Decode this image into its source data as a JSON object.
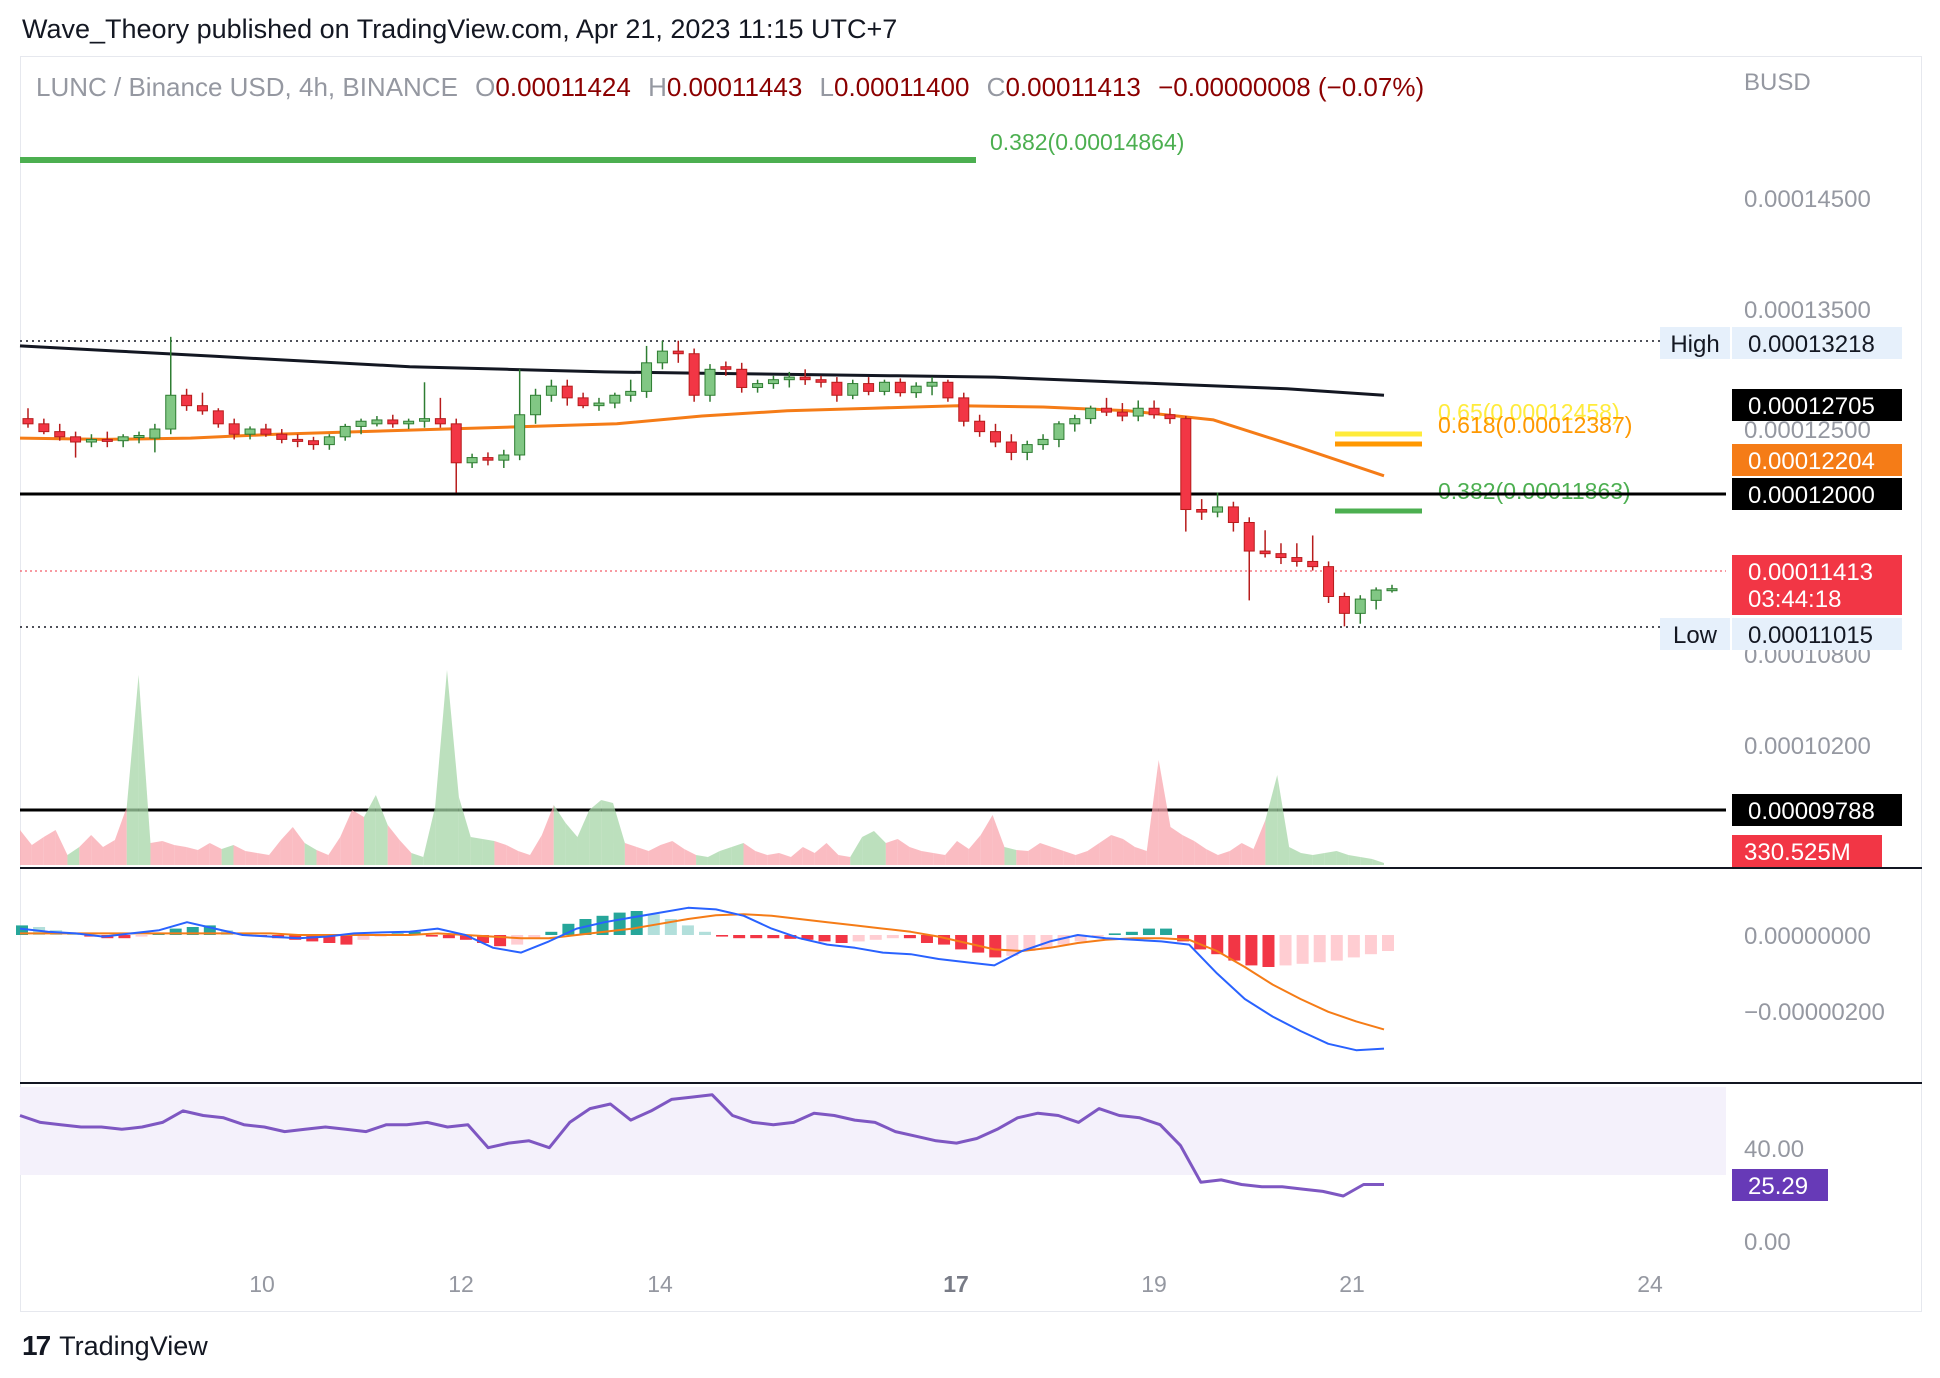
{
  "publisher": "Wave_Theory published on TradingView.com, Apr 21, 2023 11:15 UTC+7",
  "symbol": {
    "title": "LUNC / Binance USD, 4h, BINANCE",
    "o_label": "O",
    "o": "0.00011424",
    "h_label": "H",
    "h": "0.00011443",
    "l_label": "L",
    "l": "0.00011400",
    "c_label": "C",
    "c": "0.00011413",
    "change": "−0.00000008 (−0.07%)"
  },
  "footer": {
    "brand": "TradingView",
    "logo_icon": "tradingview-logo-icon"
  },
  "chart_data": [
    {
      "type": "candlestick",
      "title": "LUNC / Binance USD, 4h, BINANCE",
      "currency_label": "BUSD",
      "y_ticks": [
        "0.00014500",
        "0.00013500",
        "0.00012500",
        "0.00010800",
        "0.00010200"
      ],
      "x_ticks": [
        {
          "label": "10",
          "bold": false
        },
        {
          "label": "12",
          "bold": false
        },
        {
          "label": "14",
          "bold": false
        },
        {
          "label": "17",
          "bold": true
        },
        {
          "label": "19",
          "bold": false
        },
        {
          "label": "21",
          "bold": false
        },
        {
          "label": "24",
          "bold": false
        }
      ],
      "candles_ohlc": [
        [
          0.0001262,
          0.000127,
          0.0001255,
          0.0001258
        ],
        [
          0.0001258,
          0.0001262,
          0.000125,
          0.0001252
        ],
        [
          0.0001252,
          0.0001258,
          0.0001245,
          0.0001248
        ],
        [
          0.0001248,
          0.0001252,
          0.0001232,
          0.0001244
        ],
        [
          0.0001244,
          0.000125,
          0.000124,
          0.0001246
        ],
        [
          0.0001246,
          0.0001252,
          0.000124,
          0.0001245
        ],
        [
          0.0001245,
          0.000125,
          0.000124,
          0.0001248
        ],
        [
          0.0001248,
          0.0001252,
          0.0001243,
          0.0001249
        ],
        [
          0.0001247,
          0.0001258,
          0.0001236,
          0.0001254
        ],
        [
          0.0001254,
          0.0001325,
          0.000125,
          0.000128
        ],
        [
          0.000128,
          0.0001285,
          0.0001268,
          0.0001272
        ],
        [
          0.0001272,
          0.0001282,
          0.0001265,
          0.0001268
        ],
        [
          0.0001268,
          0.000127,
          0.0001255,
          0.0001258
        ],
        [
          0.0001258,
          0.0001262,
          0.0001246,
          0.000125
        ],
        [
          0.000125,
          0.0001256,
          0.0001246,
          0.0001254
        ],
        [
          0.0001254,
          0.0001258,
          0.0001248,
          0.000125
        ],
        [
          0.000125,
          0.0001254,
          0.0001243,
          0.0001246
        ],
        [
          0.0001246,
          0.000125,
          0.000124,
          0.0001245
        ],
        [
          0.0001245,
          0.0001248,
          0.0001238,
          0.0001242
        ],
        [
          0.0001242,
          0.000125,
          0.0001238,
          0.0001248
        ],
        [
          0.0001248,
          0.0001258,
          0.0001245,
          0.0001256
        ],
        [
          0.0001256,
          0.0001262,
          0.000125,
          0.000126
        ],
        [
          0.0001258,
          0.0001264,
          0.0001256,
          0.0001261
        ],
        [
          0.0001261,
          0.0001265,
          0.0001255,
          0.0001258
        ],
        [
          0.0001258,
          0.0001262,
          0.0001254,
          0.000126
        ],
        [
          0.000126,
          0.000129,
          0.0001255,
          0.0001262
        ],
        [
          0.0001262,
          0.0001278,
          0.0001255,
          0.0001258
        ],
        [
          0.0001258,
          0.0001262,
          0.0001205,
          0.0001228
        ],
        [
          0.0001228,
          0.0001235,
          0.0001224,
          0.0001232
        ],
        [
          0.0001232,
          0.0001236,
          0.0001226,
          0.000123
        ],
        [
          0.000123,
          0.0001238,
          0.0001224,
          0.0001234
        ],
        [
          0.0001234,
          0.00013,
          0.000123,
          0.0001265
        ],
        [
          0.0001265,
          0.0001285,
          0.0001258,
          0.000128
        ],
        [
          0.000128,
          0.0001292,
          0.0001275,
          0.0001287
        ],
        [
          0.0001287,
          0.0001292,
          0.0001272,
          0.0001278
        ],
        [
          0.0001278,
          0.0001282,
          0.000127,
          0.0001272
        ],
        [
          0.0001272,
          0.0001278,
          0.0001268,
          0.0001274
        ],
        [
          0.0001274,
          0.0001282,
          0.000127,
          0.000128
        ],
        [
          0.000128,
          0.0001292,
          0.0001275,
          0.0001283
        ],
        [
          0.0001283,
          0.0001318,
          0.0001278,
          0.0001305
        ],
        [
          0.0001305,
          0.0001322,
          0.00013,
          0.0001314
        ],
        [
          0.0001314,
          0.0001322,
          0.0001305,
          0.0001312
        ],
        [
          0.0001312,
          0.0001316,
          0.0001275,
          0.000128
        ],
        [
          0.000128,
          0.0001304,
          0.0001275,
          0.00013
        ],
        [
          0.0001302,
          0.0001306,
          0.0001295,
          0.00013
        ],
        [
          0.00013,
          0.0001305,
          0.0001282,
          0.0001286
        ],
        [
          0.0001286,
          0.0001292,
          0.0001282,
          0.0001289
        ],
        [
          0.0001289,
          0.0001295,
          0.0001285,
          0.0001292
        ],
        [
          0.0001292,
          0.0001298,
          0.0001286,
          0.0001294
        ],
        [
          0.0001294,
          0.00013,
          0.0001288,
          0.0001292
        ],
        [
          0.0001292,
          0.0001295,
          0.0001286,
          0.000129
        ],
        [
          0.000129,
          0.0001294,
          0.0001275,
          0.000128
        ],
        [
          0.000128,
          0.0001292,
          0.0001277,
          0.0001289
        ],
        [
          0.0001289,
          0.0001294,
          0.000128,
          0.0001283
        ],
        [
          0.0001283,
          0.0001292,
          0.000128,
          0.000129
        ],
        [
          0.000129,
          0.0001293,
          0.0001279,
          0.0001282
        ],
        [
          0.0001282,
          0.000129,
          0.0001278,
          0.0001287
        ],
        [
          0.0001287,
          0.0001294,
          0.000128,
          0.000129
        ],
        [
          0.000129,
          0.0001292,
          0.0001275,
          0.0001278
        ],
        [
          0.0001278,
          0.0001282,
          0.0001256,
          0.000126
        ],
        [
          0.000126,
          0.0001265,
          0.0001248,
          0.0001252
        ],
        [
          0.0001252,
          0.0001258,
          0.000124,
          0.0001244
        ],
        [
          0.0001244,
          0.000125,
          0.000123,
          0.0001236
        ],
        [
          0.0001236,
          0.0001245,
          0.000123,
          0.0001242
        ],
        [
          0.0001242,
          0.000125,
          0.0001238,
          0.0001246
        ],
        [
          0.0001246,
          0.000126,
          0.000124,
          0.0001258
        ],
        [
          0.0001258,
          0.0001265,
          0.0001252,
          0.0001262
        ],
        [
          0.0001262,
          0.0001272,
          0.0001258,
          0.000127
        ],
        [
          0.000127,
          0.0001278,
          0.0001264,
          0.0001267
        ],
        [
          0.0001267,
          0.0001274,
          0.000126,
          0.0001264
        ],
        [
          0.0001264,
          0.0001276,
          0.000126,
          0.000127
        ],
        [
          0.000127,
          0.0001276,
          0.0001262,
          0.0001265
        ],
        [
          0.0001265,
          0.000127,
          0.0001258,
          0.0001262
        ],
        [
          0.0001262,
          0.0001264,
          0.0001175,
          0.0001192
        ],
        [
          0.0001192,
          0.00012,
          0.0001184,
          0.000119
        ],
        [
          0.000119,
          0.0001205,
          0.0001186,
          0.0001194
        ],
        [
          0.0001194,
          0.0001198,
          0.0001175,
          0.0001182
        ],
        [
          0.0001182,
          0.0001186,
          0.0001122,
          0.000116
        ],
        [
          0.000116,
          0.0001176,
          0.0001155,
          0.0001158
        ],
        [
          0.0001158,
          0.0001166,
          0.000115,
          0.0001155
        ],
        [
          0.0001155,
          0.0001166,
          0.0001148,
          0.0001152
        ],
        [
          0.0001152,
          0.0001172,
          0.0001145,
          0.0001148
        ],
        [
          0.0001148,
          0.0001152,
          0.000112,
          0.0001125
        ],
        [
          0.0001125,
          0.0001128,
          0.0001102,
          0.0001112
        ],
        [
          0.0001112,
          0.0001126,
          0.0001104,
          0.0001123
        ],
        [
          0.0001122,
          0.0001132,
          0.0001115,
          0.000113
        ],
        [
          0.000113,
          0.0001134,
          0.0001128,
          0.0001131
        ]
      ],
      "ma_black": [
        0.0001318,
        0.0001314,
        0.000131,
        0.0001306,
        0.0001302,
        0.00013,
        0.0001298,
        0.0001297,
        0.0001296,
        0.0001295,
        0.0001294,
        0.0001291,
        0.0001288,
        0.0001285,
        0.000128
      ],
      "ma_orange": [
        0.0001247,
        0.0001246,
        0.0001247,
        0.000125,
        0.0001252,
        0.0001254,
        0.0001256,
        0.0001258,
        0.0001264,
        0.0001268,
        0.000127,
        0.0001272,
        0.0001271,
        0.0001268,
        0.0001261,
        0.000124,
        0.0001218
      ],
      "high_label": "High",
      "high_value": "0.00013218",
      "low_label": "Low",
      "low_value": "0.00011015",
      "price_tags": [
        {
          "value": "0.00012705",
          "bg": "#000000",
          "fg": "#ffffff"
        },
        {
          "value": "0.00012204",
          "bg": "#f57c17",
          "fg": "#ffffff"
        },
        {
          "value": "0.00012000",
          "bg": "#000000",
          "fg": "#ffffff"
        },
        {
          "value": "0.00011413",
          "countdown": "03:44:18",
          "bg": "#f23645",
          "fg": "#ffffff"
        }
      ],
      "support_level": {
        "value": "0.00012000",
        "color": "#000000"
      },
      "fib_levels": [
        {
          "label": "0.382(0.00014864)",
          "color": "#4caf50"
        },
        {
          "label": "0.65(0.00012458)",
          "color": "#ffeb3b"
        },
        {
          "label": "0.618(0.00012387)",
          "color": "#ff9800"
        },
        {
          "label": "0.382(0.00011863)",
          "color": "#4caf50"
        }
      ]
    },
    {
      "type": "area",
      "name": "Volume",
      "level_tag": {
        "value": "0.00009788",
        "bg": "#000000",
        "fg": "#ffffff"
      },
      "last_tag": {
        "value": "330.525M",
        "bg": "#f23645",
        "fg": "#ffffff"
      },
      "values": [
        35,
        20,
        28,
        35,
        10,
        18,
        30,
        18,
        25,
        58,
        190,
        22,
        24,
        20,
        18,
        15,
        22,
        16,
        20,
        14,
        12,
        10,
        25,
        38,
        22,
        15,
        10,
        28,
        55,
        48,
        70,
        40,
        25,
        12,
        8,
        58,
        195,
        68,
        28,
        26,
        24,
        20,
        14,
        10,
        30,
        60,
        42,
        28,
        55,
        65,
        62,
        22,
        18,
        14,
        20,
        24,
        16,
        10,
        8,
        14,
        18,
        22,
        14,
        10,
        12,
        8,
        18,
        12,
        22,
        10,
        8,
        28,
        34,
        22,
        26,
        18,
        14,
        12,
        10,
        24,
        16,
        30,
        50,
        18,
        15,
        14,
        22,
        18,
        14,
        10,
        14,
        22,
        30,
        26,
        18,
        14,
        105,
        38,
        30,
        24,
        16,
        10,
        14,
        22,
        16,
        45,
        90,
        18,
        12,
        10,
        12,
        14,
        10,
        8,
        6,
        2
      ],
      "dominant_color": [
        "r",
        "r",
        "r",
        "r",
        "g",
        "r",
        "r",
        "r",
        "r",
        "g",
        "g",
        "r",
        "r",
        "r",
        "r",
        "r",
        "r",
        "g",
        "r",
        "r",
        "r",
        "r",
        "r",
        "r",
        "g",
        "r",
        "r",
        "r",
        "r",
        "g",
        "g",
        "r",
        "r",
        "g",
        "g",
        "g",
        "g",
        "g",
        "g",
        "g",
        "r",
        "r",
        "r",
        "r",
        "r",
        "g",
        "g",
        "g",
        "g",
        "g",
        "g",
        "r",
        "r",
        "r",
        "r",
        "r",
        "r",
        "g",
        "g",
        "g",
        "g",
        "r",
        "r",
        "r",
        "r",
        "r",
        "r",
        "r",
        "r",
        "r",
        "g",
        "g",
        "g",
        "r",
        "r",
        "r",
        "r",
        "r",
        "r",
        "r",
        "r",
        "r",
        "r",
        "g",
        "r",
        "r",
        "r",
        "r",
        "r",
        "r",
        "r",
        "r",
        "r",
        "r",
        "r",
        "r",
        "r",
        "r",
        "r",
        "r",
        "r",
        "r",
        "r",
        "r",
        "r",
        "g",
        "g",
        "g",
        "g",
        "g",
        "g",
        "g",
        "g",
        "g",
        "g",
        "g"
      ]
    },
    {
      "type": "line",
      "name": "MACD",
      "y_ticks": [
        "0.00000000",
        "−0.00000200"
      ],
      "macd": [
        0.2,
        0.1,
        0.05,
        -0.05,
        0.05,
        0.15,
        0.4,
        0.2,
        0.0,
        -0.05,
        -0.1,
        -0.05,
        0.05,
        0.08,
        0.1,
        0.2,
        0.0,
        -0.4,
        -0.55,
        -0.2,
        0.2,
        0.4,
        0.55,
        0.7,
        0.85,
        0.8,
        0.6,
        0.2,
        -0.1,
        -0.3,
        -0.4,
        -0.55,
        -0.6,
        -0.75,
        -0.85,
        -0.95,
        -0.5,
        -0.2,
        0.0,
        -0.1,
        -0.15,
        -0.2,
        -0.3,
        -1.2,
        -2.0,
        -2.55,
        -3.0,
        -3.4,
        -3.6,
        -3.55
      ],
      "signal": [
        0.05,
        0.05,
        0.05,
        0.05,
        0.05,
        0.05,
        0.05,
        0.05,
        0.05,
        0.05,
        0.0,
        0.0,
        0.0,
        0.0,
        0.0,
        0.05,
        0.0,
        -0.05,
        -0.1,
        -0.1,
        0.0,
        0.1,
        0.2,
        0.35,
        0.5,
        0.62,
        0.65,
        0.6,
        0.5,
        0.4,
        0.3,
        0.2,
        0.1,
        -0.05,
        -0.25,
        -0.45,
        -0.5,
        -0.4,
        -0.25,
        -0.15,
        -0.1,
        -0.1,
        -0.15,
        -0.5,
        -1.0,
        -1.55,
        -2.0,
        -2.4,
        -2.7,
        -2.95
      ],
      "histogram": [
        0.3,
        0.25,
        0.15,
        0.05,
        -0.05,
        -0.1,
        -0.1,
        -0.05,
        0.05,
        0.2,
        0.25,
        0.3,
        0.15,
        0.05,
        -0.05,
        -0.1,
        -0.15,
        -0.2,
        -0.25,
        -0.3,
        -0.15,
        -0.05,
        0.05,
        0.1,
        -0.05,
        -0.1,
        -0.15,
        -0.25,
        -0.35,
        -0.3,
        -0.1,
        0.1,
        0.35,
        0.5,
        0.6,
        0.7,
        0.75,
        0.65,
        0.5,
        0.3,
        0.1,
        -0.05,
        -0.1,
        -0.1,
        -0.1,
        -0.12,
        -0.15,
        -0.2,
        -0.25,
        -0.2,
        -0.15,
        -0.1,
        -0.1,
        -0.25,
        -0.3,
        -0.45,
        -0.55,
        -0.7,
        -0.65,
        -0.5,
        -0.4,
        -0.3,
        -0.2,
        -0.05,
        0.05,
        0.1,
        0.2,
        0.2,
        -0.2,
        -0.45,
        -0.6,
        -0.8,
        -0.95,
        -1.0,
        -0.95,
        -0.9,
        -0.85,
        -0.8,
        -0.7,
        -0.6,
        -0.5
      ]
    },
    {
      "type": "line",
      "name": "RSI",
      "y_ticks": [
        "40.00",
        "0.00"
      ],
      "last_tag": {
        "value": "25.29",
        "bg": "#673ab7",
        "fg": "#ffffff"
      },
      "ylim": [
        0,
        100
      ],
      "values": [
        55,
        52,
        51,
        50,
        50,
        49,
        50,
        52,
        57,
        55,
        54,
        51,
        50,
        48,
        49,
        50,
        49,
        48,
        51,
        51,
        52,
        50,
        51,
        41,
        43,
        44,
        41,
        52,
        58,
        60,
        53,
        57,
        62,
        63,
        64,
        55,
        52,
        51,
        52,
        56,
        55,
        53,
        52,
        48,
        46,
        44,
        43,
        45,
        49,
        54,
        56,
        55,
        52,
        58,
        55,
        54,
        51,
        42,
        26,
        27,
        25,
        24,
        24,
        23,
        22,
        20,
        25,
        25
      ]
    }
  ]
}
